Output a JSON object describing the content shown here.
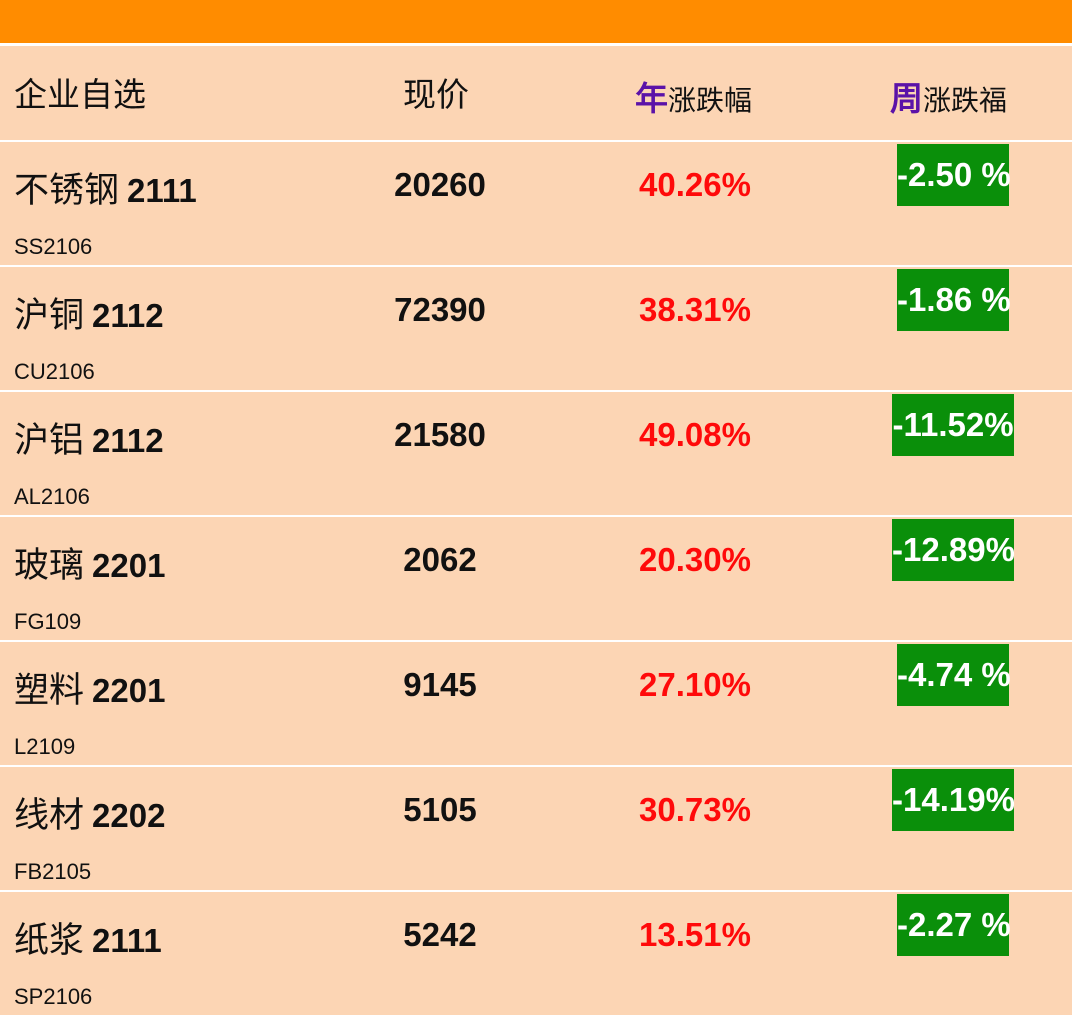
{
  "header": {
    "col_name": "企业自选",
    "col_price": "现价",
    "col_year_accent": "年",
    "col_year_rest": "涨跌幅",
    "col_week_accent": "周",
    "col_week_rest": "涨跌福"
  },
  "colors": {
    "top_bar": "#ff8c00",
    "row_bg": "#fcd5b4",
    "year_text": "#ff0a0a",
    "week_badge": "#0a8f0a",
    "header_accent": "#5b12a8"
  },
  "rows": [
    {
      "name": "不锈钢",
      "contract": "2111",
      "code": "SS2106",
      "price": "20260",
      "year_change": "40.26%",
      "week_change": "-2.50 %"
    },
    {
      "name": "沪铜",
      "contract": "2112",
      "code": "CU2106",
      "price": "72390",
      "year_change": "38.31%",
      "week_change": "-1.86 %"
    },
    {
      "name": "沪铝",
      "contract": "2112",
      "code": "AL2106",
      "price": "21580",
      "year_change": "49.08%",
      "week_change": "-11.52%"
    },
    {
      "name": "玻璃",
      "contract": "2201",
      "code": "FG109",
      "price": "2062",
      "year_change": "20.30%",
      "week_change": "-12.89%"
    },
    {
      "name": "塑料",
      "contract": "2201",
      "code": "L2109",
      "price": "9145",
      "year_change": "27.10%",
      "week_change": "-4.74 %"
    },
    {
      "name": "线材",
      "contract": "2202",
      "code": "FB2105",
      "price": "5105",
      "year_change": "30.73%",
      "week_change": "-14.19%"
    },
    {
      "name": "纸浆",
      "contract": "2111",
      "code": "SP2106",
      "price": "5242",
      "year_change": "13.51%",
      "week_change": "-2.27 %"
    }
  ]
}
